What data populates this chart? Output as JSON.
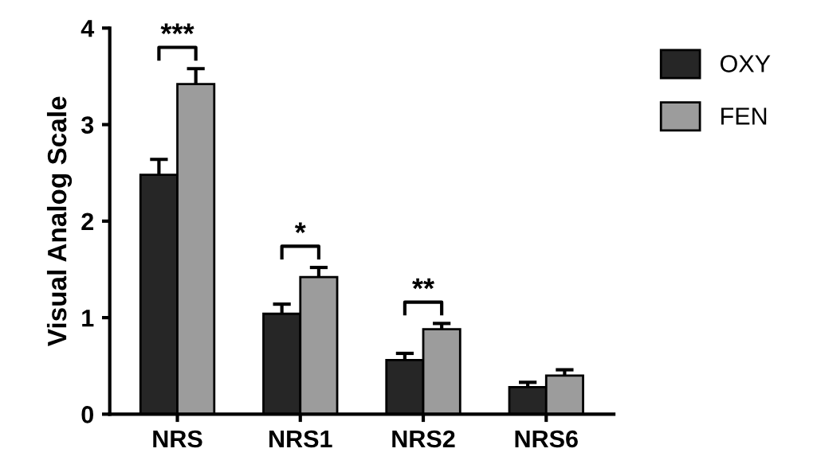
{
  "chart_data": {
    "type": "bar",
    "ylabel": "Visual Analog Scale",
    "categories": [
      "NRS",
      "NRS1",
      "NRS2",
      "NRS6"
    ],
    "series": [
      {
        "name": "OXY",
        "color": "#262626",
        "values": [
          2.48,
          1.04,
          0.56,
          0.28
        ],
        "errors": [
          0.16,
          0.1,
          0.07,
          0.05
        ]
      },
      {
        "name": "FEN",
        "color": "#9c9c9c",
        "values": [
          3.42,
          1.42,
          0.88,
          0.4
        ],
        "errors": [
          0.16,
          0.1,
          0.06,
          0.06
        ]
      }
    ],
    "ylim": [
      0,
      4
    ],
    "yticks": [
      0,
      1,
      2,
      3,
      4
    ],
    "grid": false,
    "legend": "right",
    "annotations": [
      "***",
      "*",
      "**"
    ]
  }
}
